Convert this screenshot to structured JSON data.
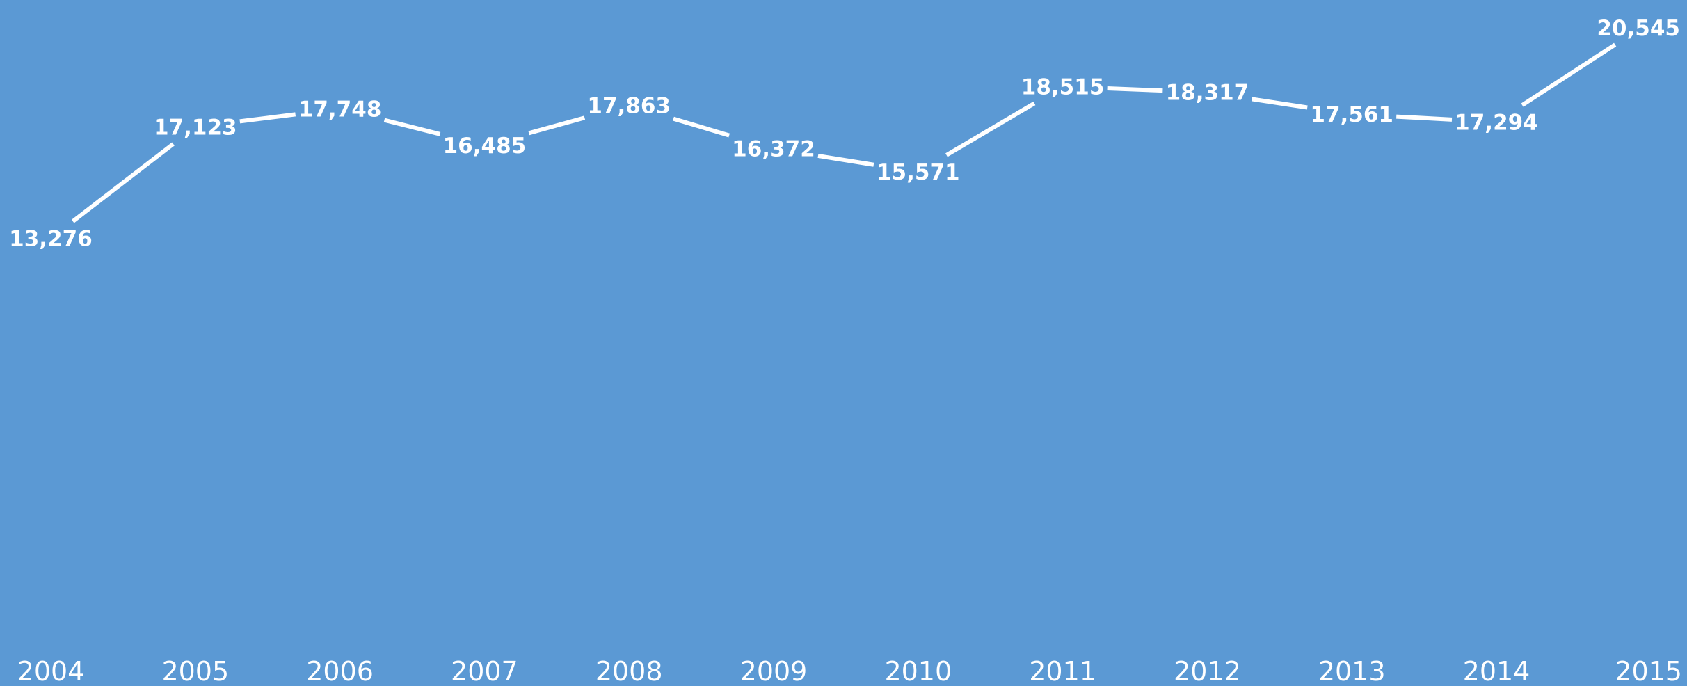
{
  "chart_data": {
    "type": "line",
    "title": "",
    "xlabel": "",
    "ylabel": "",
    "categories": [
      "2004",
      "2005",
      "2006",
      "2007",
      "2008",
      "2009",
      "2010",
      "2011",
      "2012",
      "2013",
      "2014",
      "2015"
    ],
    "values": [
      13276,
      17123,
      17748,
      16485,
      17863,
      16372,
      15571,
      18515,
      18317,
      17561,
      17294,
      20545
    ],
    "value_labels": [
      "13,276",
      "17,123",
      "17,748",
      "16,485",
      "17,863",
      "16,372",
      "15,571",
      "18,515",
      "18,317",
      "17,561",
      "17,294",
      "20,545"
    ],
    "ylim": [
      0,
      20545
    ],
    "grid": false,
    "legend": "none",
    "drop_lines": true
  },
  "colors": {
    "background": "#5b99d4",
    "line": "#ffffff",
    "text": "#ffffff"
  }
}
